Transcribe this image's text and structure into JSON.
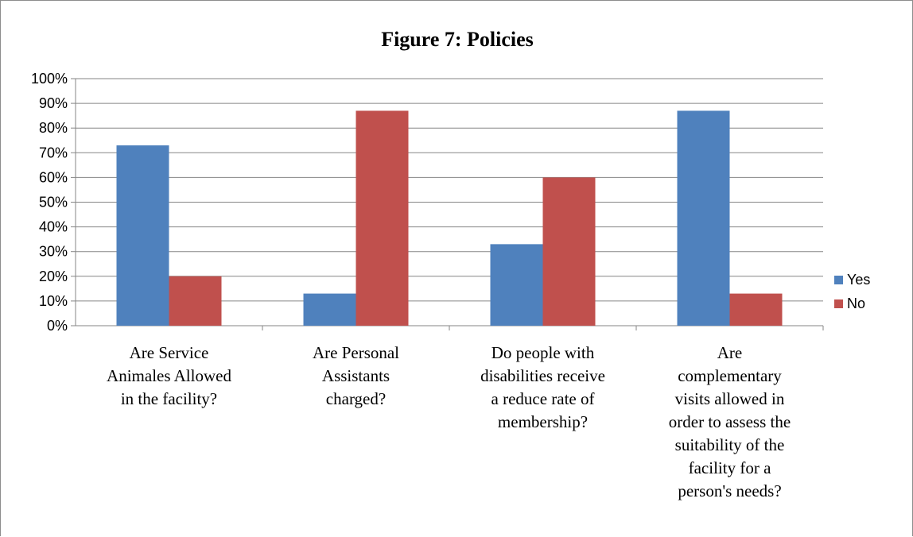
{
  "chart_data": {
    "type": "bar",
    "title": "Figure 7: Policies",
    "xlabel": "",
    "ylabel": "",
    "ylim": [
      0,
      100
    ],
    "yticks": [
      "0%",
      "10%",
      "20%",
      "30%",
      "40%",
      "50%",
      "60%",
      "70%",
      "80%",
      "90%",
      "100%"
    ],
    "grid": true,
    "legend_position": "right",
    "categories": [
      "Are Service Animales Allowed in the facility?",
      "Are Personal Assistants charged?",
      "Do people with disabilities receive a reduce rate of membership?",
      "Are complementary visits allowed in order to assess the suitability of the facility for a person's needs?"
    ],
    "category_lines": [
      [
        "Are Service",
        "Animales Allowed",
        "in the facility?"
      ],
      [
        "Are Personal",
        "Assistants",
        "charged?"
      ],
      [
        "Do people with",
        "disabilities receive",
        "a reduce rate of",
        "membership?"
      ],
      [
        "Are",
        "complementary",
        "visits allowed in",
        "order to assess the",
        "suitability of the",
        "facility for a",
        "person's needs?"
      ]
    ],
    "series": [
      {
        "name": "Yes",
        "color": "#4F81BD",
        "values": [
          73,
          13,
          33,
          87
        ]
      },
      {
        "name": "No",
        "color": "#C0504D",
        "values": [
          20,
          87,
          60,
          13
        ]
      }
    ]
  }
}
